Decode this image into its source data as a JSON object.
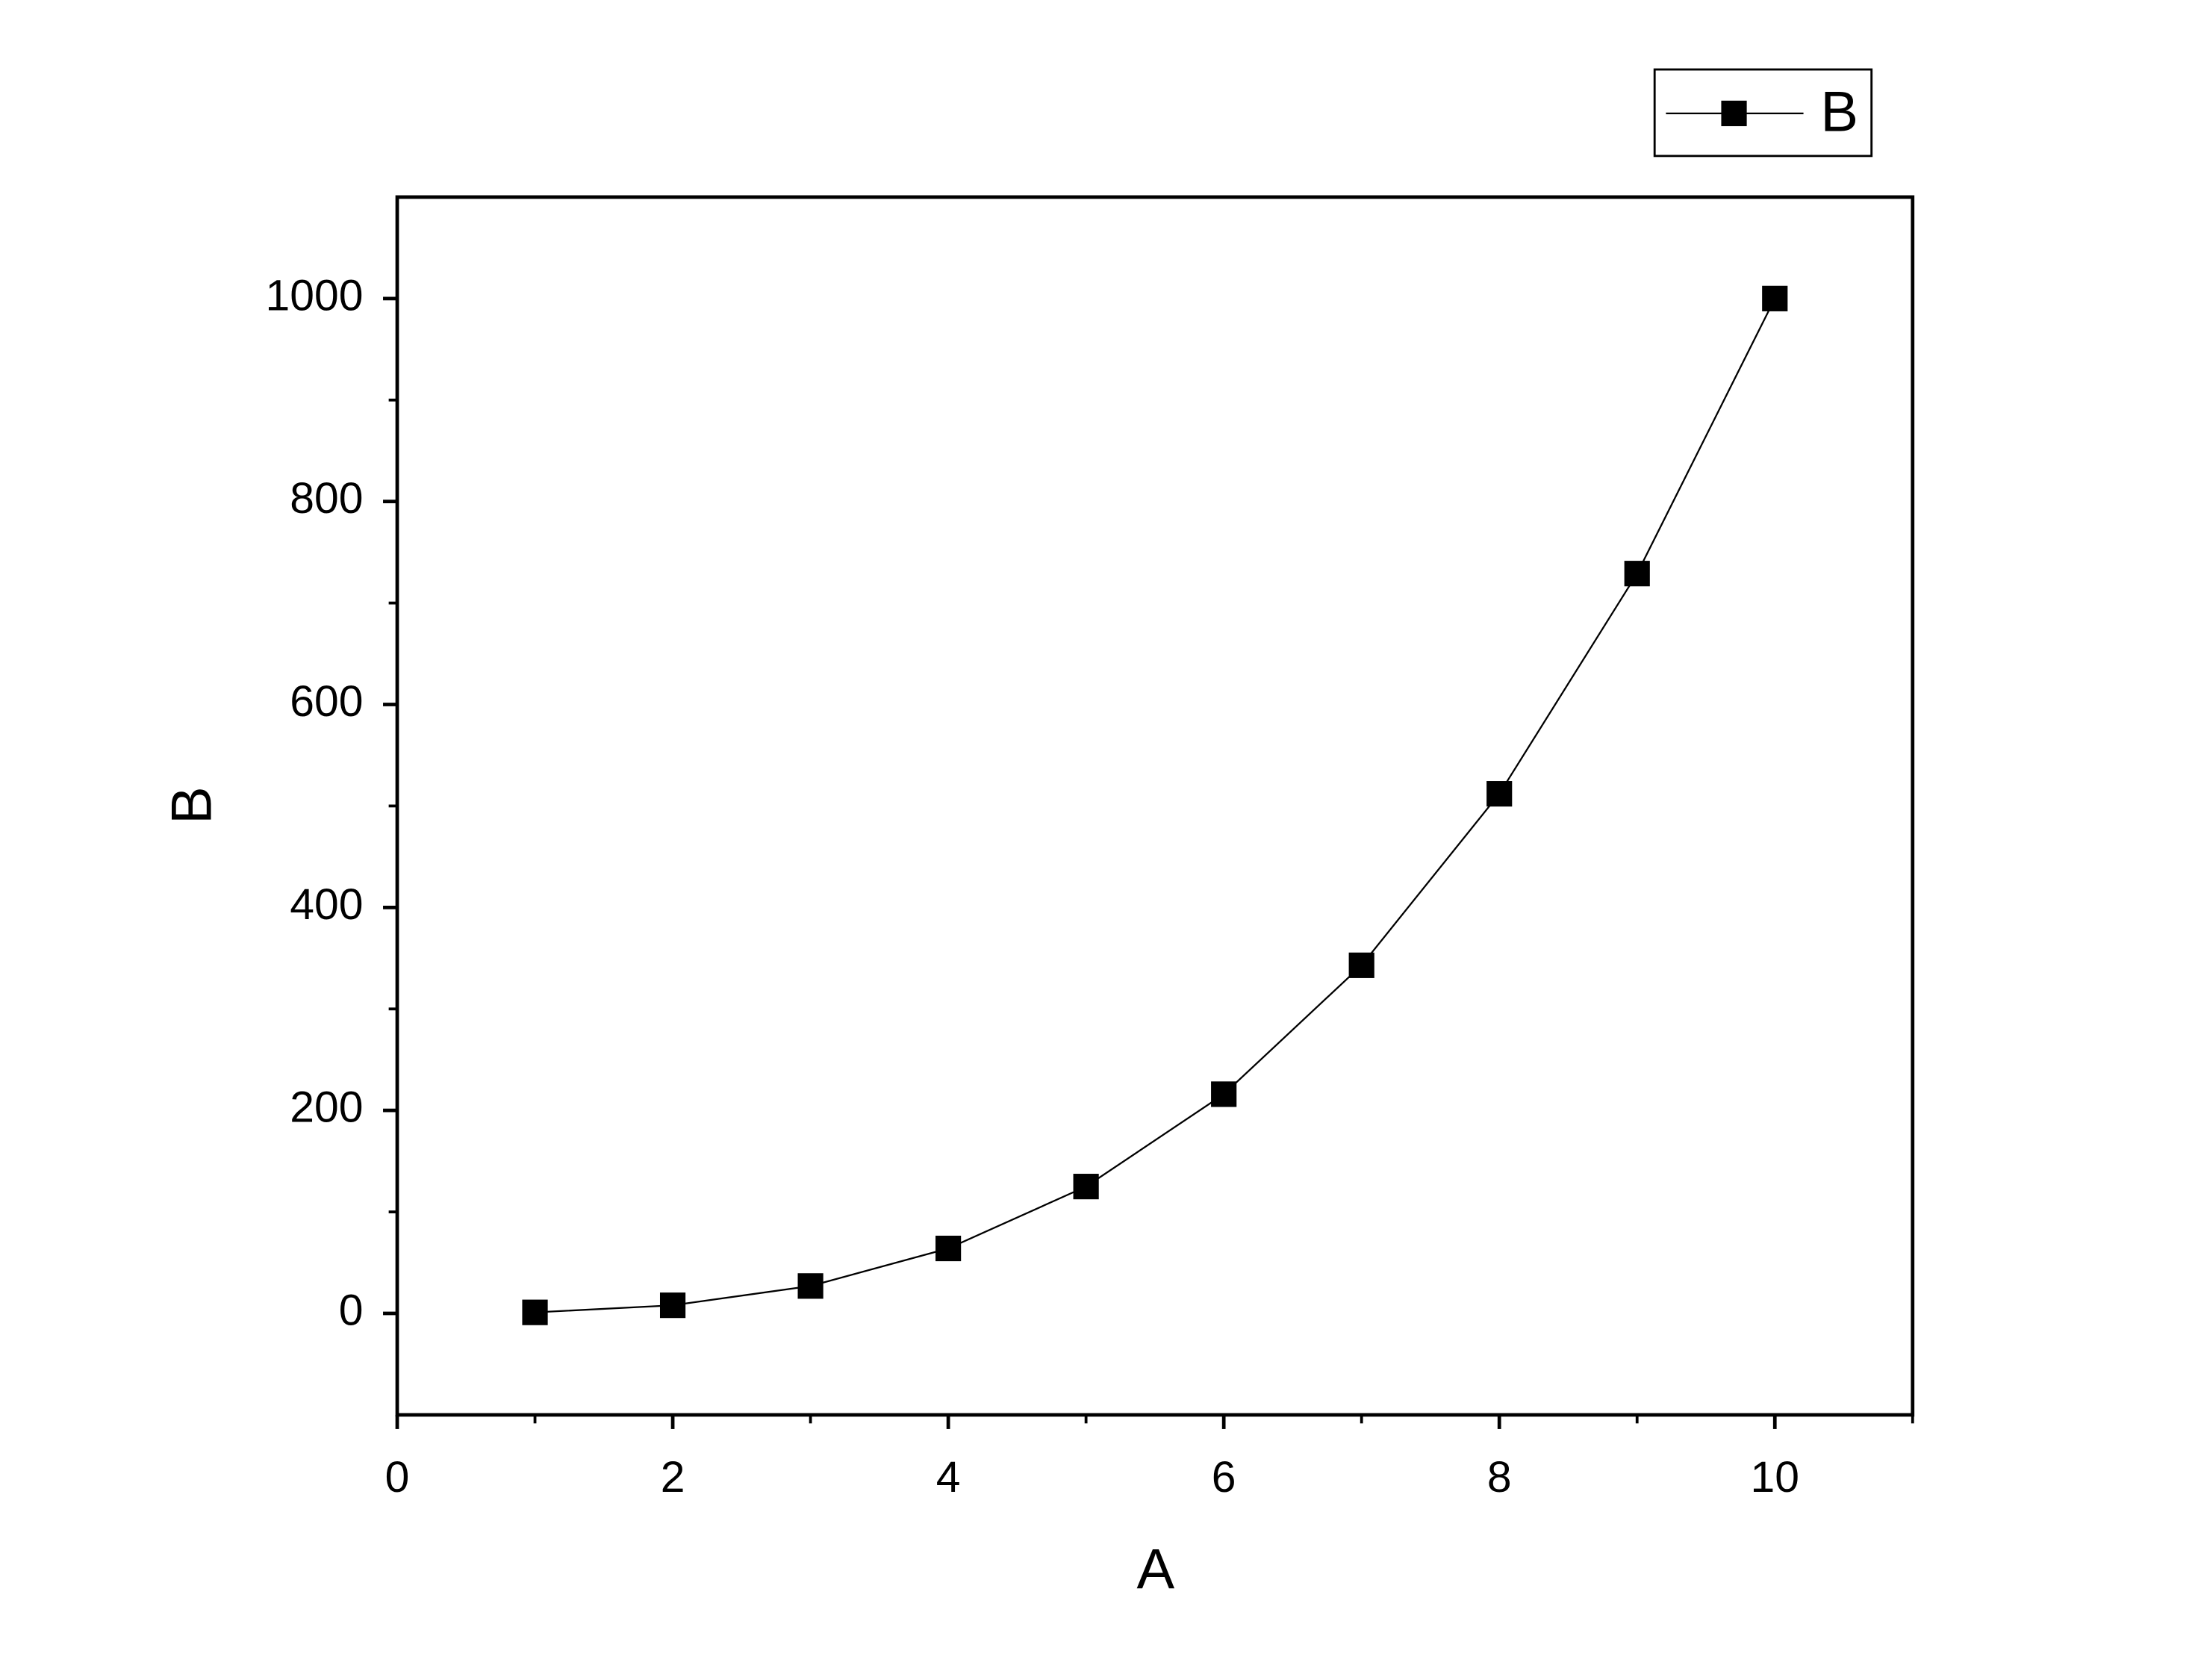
{
  "chart_data": {
    "type": "line",
    "x_label": "A",
    "y_label": "B",
    "x": [
      1,
      2,
      3,
      4,
      5,
      6,
      7,
      8,
      9,
      10
    ],
    "series": [
      {
        "name": "B",
        "color": "#000000",
        "marker": "square",
        "values": [
          1,
          8,
          27,
          64,
          125,
          216,
          343,
          512,
          729,
          1000
        ]
      }
    ],
    "xlim": [
      0,
      11
    ],
    "xticks": [
      0,
      2,
      4,
      6,
      8,
      10
    ],
    "ylim": [
      -100,
      1100
    ],
    "yticks": [
      0,
      200,
      400,
      600,
      800,
      1000
    ],
    "grid": false,
    "legend": "top-right"
  }
}
